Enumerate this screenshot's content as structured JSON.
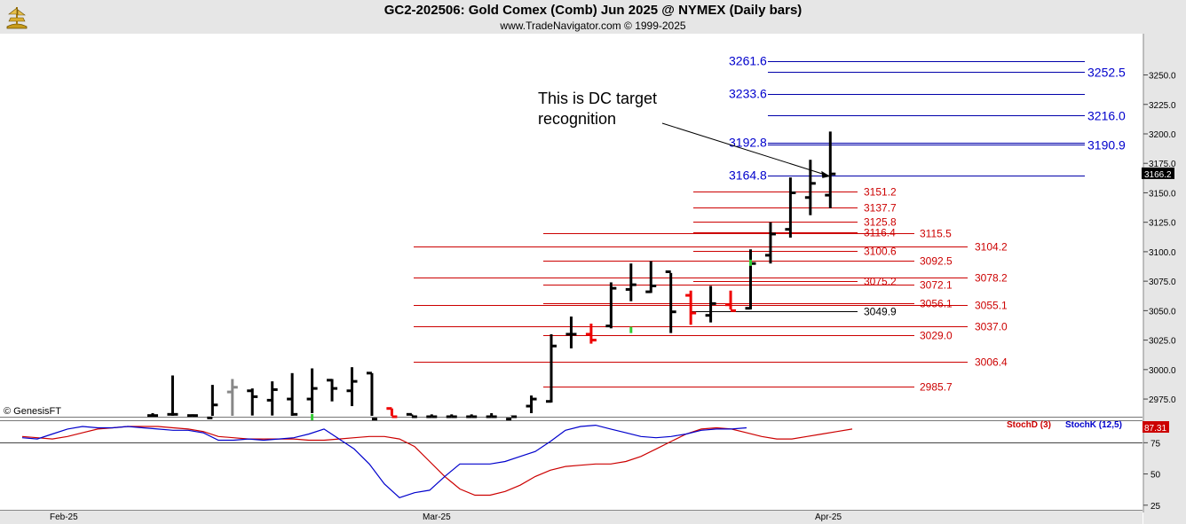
{
  "header": {
    "title": "GC2-202506:  Gold Comex (Comb) Jun 2025 @ NYMEX  (Daily bars)",
    "subtitle": "www.TradeNavigator.com © 1999-2025"
  },
  "chart_data": [
    {
      "type": "ohlc",
      "ylim": [
        2960,
        3285
      ],
      "price_ticks": [
        2975.0,
        3000.0,
        3025.0,
        3050.0,
        3075.0,
        3100.0,
        3125.0,
        3150.0,
        3175.0,
        3200.0,
        3225.0,
        3250.0
      ],
      "last_price_label": "3166.2",
      "x_labels": [
        "Feb-25",
        "Mar-25",
        "Apr-25"
      ],
      "watermark": "© GenesisFT",
      "bars": [
        {
          "o": 2961,
          "h": 2963,
          "l": 2958,
          "c": 2961,
          "color": "black"
        },
        {
          "o": 2962,
          "h": 2995,
          "l": 2958,
          "c": 2962,
          "color": "black"
        },
        {
          "o": 2961,
          "h": 2962,
          "l": 2958,
          "c": 2961,
          "color": "black"
        },
        {
          "o": 2959,
          "h": 2987,
          "l": 2958,
          "c": 2970,
          "color": "black"
        },
        {
          "o": 2981,
          "h": 2992,
          "l": 2958,
          "c": 2985,
          "color": "gray"
        },
        {
          "o": 2982,
          "h": 2984,
          "l": 2961,
          "c": 2977,
          "color": "black"
        },
        {
          "o": 2974,
          "h": 2990,
          "l": 2961,
          "c": 2983,
          "color": "black"
        },
        {
          "o": 2975,
          "h": 2997,
          "l": 2958,
          "c": 2962,
          "color": "black"
        },
        {
          "o": 2975,
          "h": 3001,
          "l": 2963,
          "c": 2984,
          "color": "black"
        },
        {
          "o": 2991,
          "h": 2992,
          "l": 2973,
          "c": 2984,
          "color": "black"
        },
        {
          "o": 2982,
          "h": 3002,
          "l": 2969,
          "c": 2990,
          "color": "black"
        },
        {
          "o": 2997,
          "h": 2997,
          "l": 2958,
          "c": 2958,
          "color": "black"
        },
        {
          "o": 2967,
          "h": 2967,
          "l": 2958,
          "c": 2960,
          "color": "red"
        },
        {
          "o": 2962,
          "h": 2962,
          "l": 2958,
          "c": 2960,
          "color": "black"
        },
        {
          "o": 2960,
          "h": 2962,
          "l": 2958,
          "c": 2960,
          "color": "black"
        },
        {
          "o": 2960,
          "h": 2962,
          "l": 2958,
          "c": 2960,
          "color": "black"
        },
        {
          "o": 2960,
          "h": 2962,
          "l": 2958,
          "c": 2960,
          "color": "black"
        },
        {
          "o": 2960,
          "h": 2963,
          "l": 2958,
          "c": 2960,
          "color": "black"
        },
        {
          "o": 2958,
          "h": 2961,
          "l": 2958,
          "c": 2960,
          "color": "black"
        },
        {
          "o": 2969,
          "h": 2978,
          "l": 2963,
          "c": 2975,
          "color": "black"
        },
        {
          "o": 2973,
          "h": 3030,
          "l": 2972,
          "c": 3020,
          "color": "black"
        },
        {
          "o": 3030,
          "h": 3045,
          "l": 3018,
          "c": 3030,
          "color": "black"
        },
        {
          "o": 3030,
          "h": 3039,
          "l": 3022,
          "c": 3025,
          "color": "red"
        },
        {
          "o": 3037,
          "h": 3074,
          "l": 3035,
          "c": 3069,
          "color": "black"
        },
        {
          "o": 3068,
          "h": 3090,
          "l": 3058,
          "c": 3072,
          "color": "black"
        },
        {
          "o": 3066,
          "h": 3092,
          "l": 3065,
          "c": 3071,
          "color": "black"
        },
        {
          "o": 3083,
          "h": 3082,
          "l": 3031,
          "c": 3049,
          "color": "black"
        },
        {
          "o": 3063,
          "h": 3067,
          "l": 3038,
          "c": 3048,
          "color": "red"
        },
        {
          "o": 3046,
          "h": 3071,
          "l": 3040,
          "c": 3056,
          "color": "black"
        },
        {
          "o": 3055,
          "h": 3067,
          "l": 3051,
          "c": 3050,
          "color": "red"
        },
        {
          "o": 3052,
          "h": 3102,
          "l": 3051,
          "c": 3090,
          "color": "black"
        },
        {
          "o": 3097,
          "h": 3125,
          "l": 3090,
          "c": 3115,
          "color": "black"
        },
        {
          "o": 3119,
          "h": 3163,
          "l": 3112,
          "c": 3150,
          "color": "black"
        },
        {
          "o": 3146,
          "h": 3178,
          "l": 3131,
          "c": 3158,
          "color": "black"
        },
        {
          "o": 3148,
          "h": 3202,
          "l": 3137,
          "c": 3166,
          "color": "black"
        }
      ],
      "ticks_green": [
        {
          "bar": 8,
          "price": 2960
        },
        {
          "bar": 24,
          "price": 3034
        },
        {
          "bar": 30,
          "price": 3091
        }
      ],
      "blue_levels": [
        {
          "price": 3261.6,
          "label": "3261.6",
          "side": "left"
        },
        {
          "price": 3252.5,
          "label": "3252.5",
          "side": "right"
        },
        {
          "price": 3233.6,
          "label": "3233.6",
          "side": "left"
        },
        {
          "price": 3216.0,
          "label": "3216.0",
          "side": "right"
        },
        {
          "price": 3192.8,
          "label": "3192.8",
          "side": "left"
        },
        {
          "price": 3190.9,
          "label": "3190.9",
          "side": "right"
        },
        {
          "price": 3164.8,
          "label": "3164.8",
          "side": "left"
        }
      ],
      "red_levels": [
        {
          "price": 3151.2,
          "label": "3151.2",
          "start": 1,
          "end": 2
        },
        {
          "price": 3137.7,
          "label": "3137.7",
          "start": 1,
          "end": 2
        },
        {
          "price": 3125.8,
          "label": "3125.8",
          "start": 1,
          "end": 2
        },
        {
          "price": 3116.4,
          "label": "3116.4",
          "start": 1,
          "end": 2
        },
        {
          "price": 3115.5,
          "label": "3115.5",
          "start": 2,
          "end": 3
        },
        {
          "price": 3104.2,
          "label": "3104.2",
          "start": 0,
          "end": 4
        },
        {
          "price": 3100.6,
          "label": "3100.6",
          "start": 1,
          "end": 2
        },
        {
          "price": 3092.5,
          "label": "3092.5",
          "start": 2,
          "end": 3
        },
        {
          "price": 3078.2,
          "label": "3078.2",
          "start": 0,
          "end": 4
        },
        {
          "price": 3075.2,
          "label": "3075.2",
          "start": 1,
          "end": 2
        },
        {
          "price": 3072.1,
          "label": "3072.1",
          "start": 2,
          "end": 3
        },
        {
          "price": 3056.1,
          "label": "3056.1",
          "start": 2,
          "end": 3
        },
        {
          "price": 3055.1,
          "label": "3055.1",
          "start": 0,
          "end": 4
        },
        {
          "price": 3037.0,
          "label": "3037.0",
          "start": 0,
          "end": 4
        },
        {
          "price": 3029.0,
          "label": "3029.0",
          "start": 2,
          "end": 3
        },
        {
          "price": 3006.4,
          "label": "3006.4",
          "start": 0,
          "end": 4
        },
        {
          "price": 2985.7,
          "label": "2985.7",
          "start": 2,
          "end": 3
        }
      ],
      "black_level": {
        "price": 3049.9,
        "label": "3049.9",
        "start_bar": 27
      },
      "annotation": {
        "lines": [
          "This is DC target",
          "recognition"
        ],
        "arrow_target_bar": 34,
        "arrow_target_price": 3164
      }
    },
    {
      "type": "line",
      "ylim": [
        22,
        93
      ],
      "y_ticks": [
        25,
        50,
        75
      ],
      "reference_line": 75,
      "last_value_label": "87.31",
      "legend": [
        {
          "name": "StochD (3)",
          "color": "#cc0000"
        },
        {
          "name": "StochK (12,5)",
          "color": "#0000cc"
        }
      ],
      "series": [
        {
          "name": "StochD (3)",
          "color": "#cc0000",
          "values": [
            80,
            79,
            78,
            80,
            83,
            86,
            87,
            88,
            88,
            88,
            87,
            86,
            84,
            80,
            79,
            78,
            78,
            78,
            78,
            77,
            77,
            78,
            79,
            80,
            80,
            78,
            72,
            60,
            48,
            38,
            33,
            33,
            36,
            41,
            48,
            53,
            56,
            57,
            58,
            58,
            60,
            64,
            70,
            76,
            82,
            86,
            87,
            86,
            83,
            80,
            78,
            78,
            80,
            82,
            84,
            86
          ]
        },
        {
          "name": "StochK (12,5)",
          "color": "#0000cc",
          "values": [
            79,
            78,
            82,
            86,
            88,
            87,
            87,
            88,
            87,
            86,
            85,
            85,
            83,
            77,
            77,
            78,
            77,
            78,
            79,
            82,
            86,
            78,
            70,
            58,
            42,
            31,
            35,
            37,
            48,
            58,
            58,
            58,
            60,
            64,
            68,
            76,
            85,
            88,
            89,
            86,
            83,
            80,
            79,
            80,
            82,
            85,
            86,
            86,
            87
          ]
        }
      ]
    }
  ]
}
